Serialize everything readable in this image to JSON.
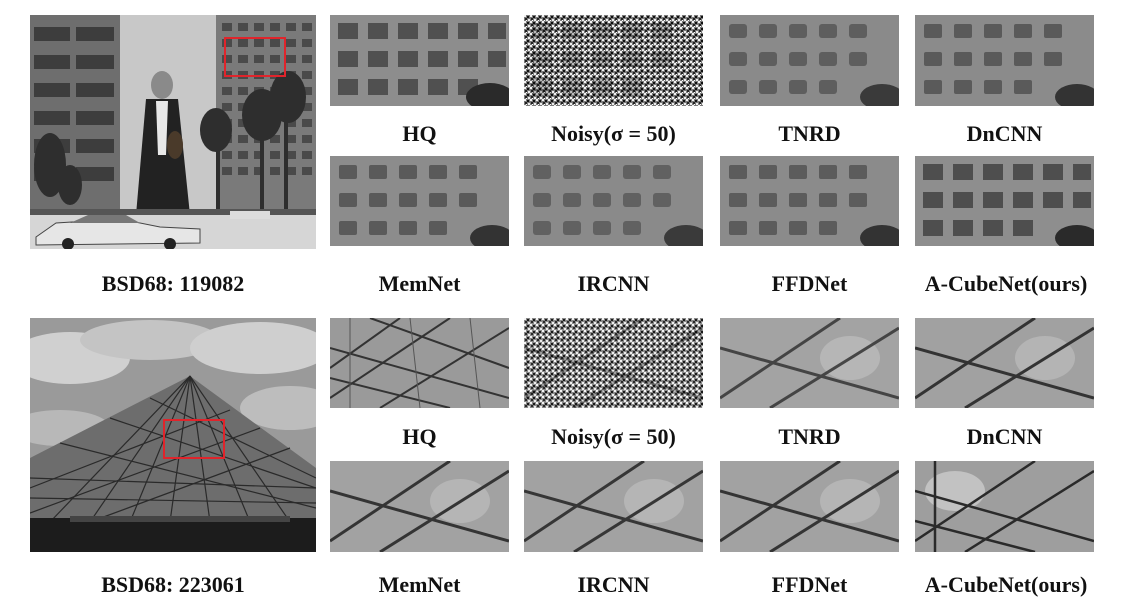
{
  "figure": {
    "rows": [
      {
        "dataset_label": "BSD68: 119082",
        "top_captions": [
          "HQ",
          "Noisy(σ = 50)",
          "TNRD",
          "DnCNN"
        ],
        "bottom_captions": [
          "MemNet",
          "IRCNN",
          "FFDNet",
          "A-CubeNet(ours)"
        ]
      },
      {
        "dataset_label": "BSD68: 223061",
        "top_captions": [
          "HQ",
          "Noisy(σ = 50)",
          "TNRD",
          "DnCNN"
        ],
        "bottom_captions": [
          "MemNet",
          "IRCNN",
          "FFDNet",
          "A-CubeNet(ours)"
        ]
      }
    ],
    "colors": {
      "highlight_box": "#e0242b"
    }
  }
}
